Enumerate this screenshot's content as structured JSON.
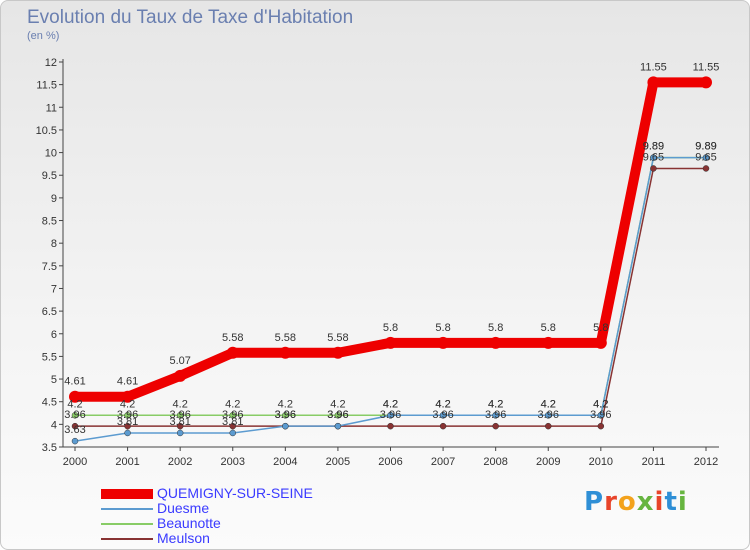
{
  "title": "Evolution du Taux de Taxe d'Habitation",
  "unit": "(en %)",
  "logo": {
    "text": "Proxiti",
    "letter_colors": [
      "#2f8fd6",
      "#e8442a",
      "#f3a21c",
      "#67b540",
      "#e8442a",
      "#2f8fd6",
      "#67b540"
    ]
  },
  "chart_data": {
    "type": "line",
    "title": "Evolution du Taux de Taxe d'Habitation",
    "ylabel": "(en %)",
    "xlabel": "",
    "x": [
      "2000",
      "2001",
      "2002",
      "2003",
      "2004",
      "2005",
      "2006",
      "2007",
      "2008",
      "2009",
      "2010",
      "2011",
      "2012"
    ],
    "ylim": [
      3.5,
      12
    ],
    "yticks": [
      "3.5",
      "4",
      "4.5",
      "5",
      "5.5",
      "6",
      "6.5",
      "7",
      "7.5",
      "8",
      "8.5",
      "9",
      "9.5",
      "10",
      "10.5",
      "11",
      "11.5",
      "12"
    ],
    "grid": false,
    "legend_position": "bottom-left",
    "series": [
      {
        "name": "QUEMIGNY-SUR-SEINE",
        "color": "#ee0000",
        "values": [
          4.61,
          4.61,
          5.07,
          5.58,
          5.58,
          5.58,
          5.8,
          5.8,
          5.8,
          5.8,
          5.8,
          11.55,
          11.55
        ],
        "labels": [
          "4.61",
          "4.61",
          "5.07",
          "5.58",
          "5.58",
          "5.58",
          "5.8",
          "5.8",
          "5.8",
          "5.8",
          "5.8",
          "11.55",
          "11.55"
        ]
      },
      {
        "name": "Duesme",
        "color": "#5c9bd0",
        "values": [
          3.63,
          3.81,
          3.81,
          3.81,
          3.96,
          3.96,
          4.2,
          4.2,
          4.2,
          4.2,
          4.2,
          9.89,
          9.89
        ],
        "labels": [
          "3.63",
          "3.81",
          "3.81",
          "3.81",
          "3.96",
          "3.96",
          "4.2",
          "4.2",
          "4.2",
          "4.2",
          "4.2",
          "9.89",
          "9.89"
        ]
      },
      {
        "name": "Beaunotte",
        "color": "#88cc66",
        "values": [
          4.2,
          4.2,
          4.2,
          4.2,
          4.2,
          4.2,
          4.2,
          4.2,
          4.2,
          4.2,
          4.2,
          9.89,
          9.89
        ],
        "labels": [
          "4.2",
          "4.2",
          "4.2",
          "4.2",
          "4.2",
          "4.2",
          "4.2",
          "4.2",
          "4.2",
          "4.2",
          "4.2",
          "9.89",
          "9.89"
        ]
      },
      {
        "name": "Meulson",
        "color": "#883333",
        "values": [
          3.96,
          3.96,
          3.96,
          3.96,
          3.96,
          3.96,
          3.96,
          3.96,
          3.96,
          3.96,
          3.96,
          9.65,
          9.65
        ],
        "labels": [
          "3.96",
          "3.96",
          "3.96",
          "3.96",
          "3.96",
          "3.96",
          "3.96",
          "3.96",
          "3.96",
          "3.96",
          "3.96",
          "9.65",
          "9.65"
        ]
      }
    ]
  }
}
